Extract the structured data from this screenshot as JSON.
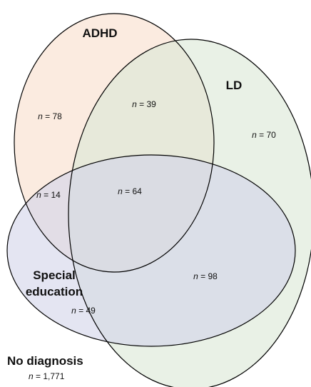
{
  "sets": [
    {
      "id": "adhd",
      "label": "ADHD",
      "color": "#f9ddcc"
    },
    {
      "id": "ld",
      "label": "LD",
      "color": "#dbe8d6"
    },
    {
      "id": "special",
      "label": "Special education",
      "label_lines": [
        "Special",
        "education"
      ],
      "color": "#d2d4ea"
    }
  ],
  "count_prefix": "n = ",
  "regions": {
    "adhd_only": "78",
    "adhd_ld": "39",
    "ld_only": "70",
    "adhd_special": "14",
    "all_three": "64",
    "ld_special": "98",
    "special_only": "49"
  },
  "outside": {
    "label": "No diagnosis",
    "count": "1,771"
  }
}
